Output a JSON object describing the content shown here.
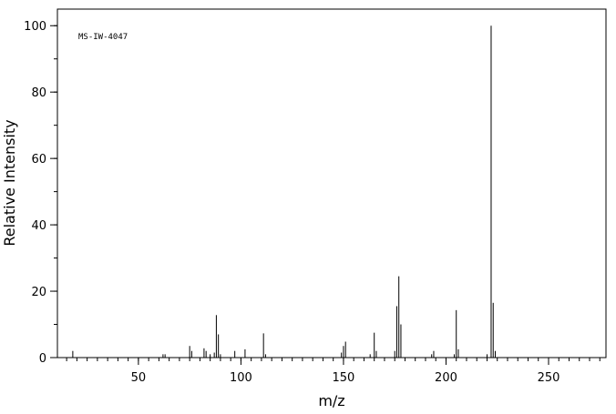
{
  "chart_data": {
    "type": "bar",
    "annotation": "MS-IW-4047",
    "x_label": "m/z",
    "y_label": "Relative Intensity",
    "x": [
      18,
      62,
      63,
      75,
      76,
      82,
      83,
      85,
      87,
      88,
      89,
      90,
      97,
      102,
      111,
      112,
      149,
      150,
      151,
      163,
      165,
      166,
      175,
      176,
      177,
      178,
      193,
      194,
      204,
      205,
      206,
      220,
      222,
      223,
      224
    ],
    "values": [
      2,
      1,
      1,
      3.5,
      2,
      2.8,
      2,
      1,
      1.5,
      12.8,
      7,
      1,
      2,
      2.5,
      7.3,
      1,
      1.5,
      3.5,
      4.8,
      1,
      7.5,
      2,
      2,
      15.5,
      24.5,
      10,
      1,
      2,
      1,
      14.3,
      2.5,
      1,
      100,
      16.5,
      2
    ],
    "color": "#000000",
    "xlim": [
      10.5,
      278
    ],
    "ylim": [
      0,
      105
    ],
    "xticks": [
      50,
      100,
      150,
      200,
      250
    ],
    "yticks": [
      0,
      20,
      40,
      60,
      80,
      100
    ],
    "grid": false
  }
}
